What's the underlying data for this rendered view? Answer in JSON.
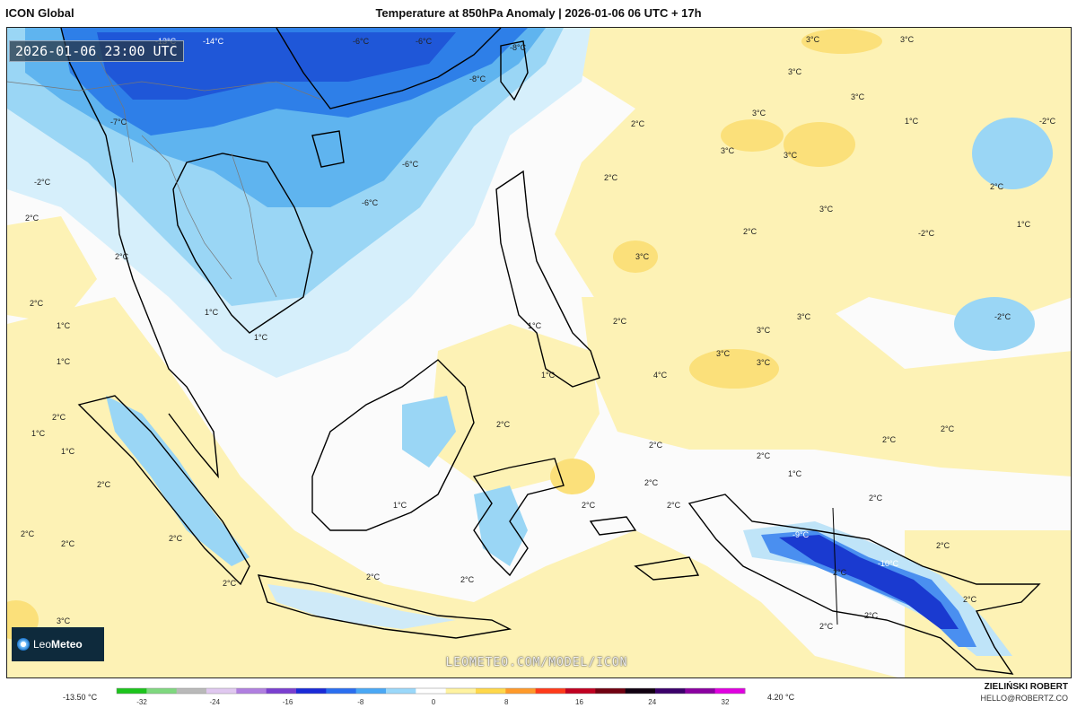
{
  "header": {
    "model_name": "ICON Global",
    "title": "Temperature at 850hPa Anomaly | 2026-01-06 06 UTC + 17h"
  },
  "map": {
    "valid_time": "2026-01-06 23:00 UTC",
    "watermark": "LEOMETEO.COM/MODEL/ICON",
    "logo_text_light": "Leo",
    "logo_text_bold": "Meteo",
    "region": "Southeast Asia / Maritime Continent",
    "contour_labels": [
      "-14°C",
      "-13°C",
      "-6°C",
      "-6°C",
      "-8°C",
      "-8°C",
      "-7°C",
      "-6°C",
      "-6°C",
      "-2°C",
      "-2°C",
      "-2°C",
      "-2°C",
      "-9°C",
      "-10°C",
      "1°C",
      "1°C",
      "1°C",
      "1°C",
      "1°C",
      "1°C",
      "1°C",
      "1°C",
      "1°C",
      "1°C",
      "1°C",
      "1°C",
      "2°C",
      "2°C",
      "2°C",
      "2°C",
      "2°C",
      "2°C",
      "2°C",
      "2°C",
      "2°C",
      "2°C",
      "2°C",
      "2°C",
      "2°C",
      "2°C",
      "2°C",
      "2°C",
      "2°C",
      "2°C",
      "2°C",
      "2°C",
      "2°C",
      "2°C",
      "2°C",
      "2°C",
      "2°C",
      "2°C",
      "2°C",
      "2°C",
      "2°C",
      "2°C",
      "3°C",
      "3°C",
      "3°C",
      "3°C",
      "3°C",
      "3°C",
      "3°C",
      "3°C",
      "3°C",
      "3°C",
      "3°C",
      "3°C",
      "3°C",
      "3°C",
      "4°C"
    ]
  },
  "legend": {
    "min_label": "-13.50 °C",
    "max_label": "4.20 °C",
    "ticks": [
      "-32",
      "-24",
      "-16",
      "-8",
      "0",
      "8",
      "16",
      "24",
      "32"
    ],
    "colors": [
      "#1cc41c",
      "#7fd87f",
      "#b9b9b9",
      "#e0c8f0",
      "#b07fe0",
      "#7a3fd0",
      "#1a2ad8",
      "#2a6ef0",
      "#4aa8f5",
      "#9ad8fa",
      "#ffffff",
      "#fff3a0",
      "#ffd84a",
      "#ff9a2a",
      "#ff3a1a",
      "#c00020",
      "#700010",
      "#100010",
      "#3a006a",
      "#8a00a0",
      "#e000e0"
    ]
  },
  "footer": {
    "author_name": "ZIELIŃSKI ROBERT",
    "author_email": "HELLO@ROBERTZ.CO"
  }
}
